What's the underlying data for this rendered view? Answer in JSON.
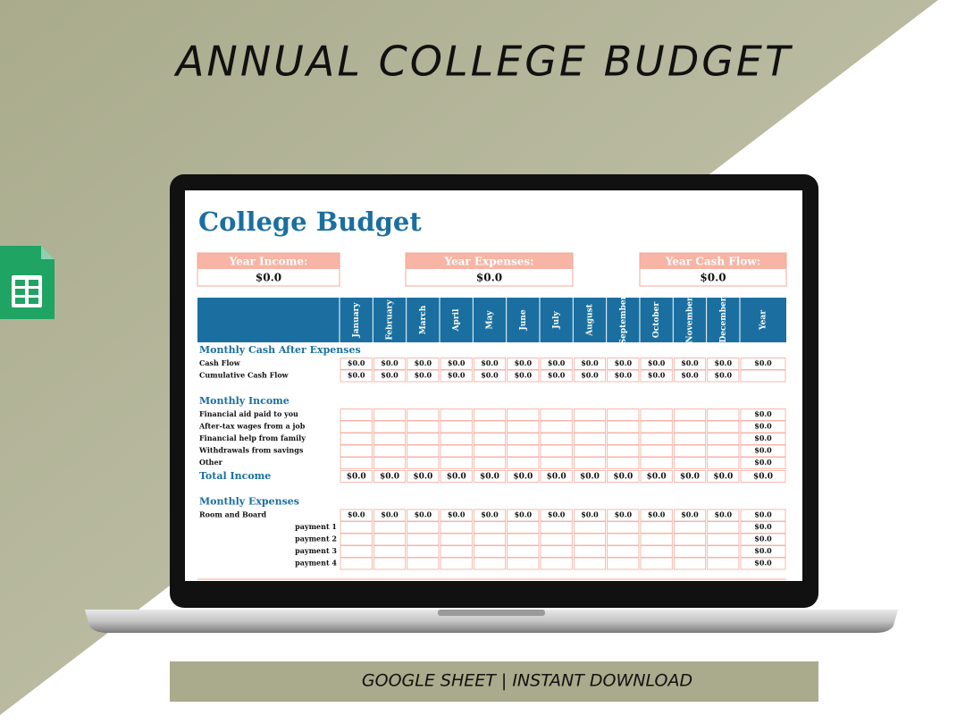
{
  "banner": {
    "title": "ANNUAL COLLEGE BUDGET",
    "footer": "GOOGLE SHEET | INSTANT DOWNLOAD"
  },
  "sheet": {
    "title": "College Budget",
    "summary": [
      {
        "label": "Year Income:",
        "value": "$0.0"
      },
      {
        "label": "Year Expenses:",
        "value": "$0.0"
      },
      {
        "label": "Year Cash Flow:",
        "value": "$0.0"
      }
    ],
    "columns": [
      "January",
      "February",
      "March",
      "April",
      "May",
      "June",
      "July",
      "August",
      "September",
      "October",
      "November",
      "December",
      "Year"
    ],
    "sections": [
      {
        "title": "Monthly Cash After Expenses",
        "rows": [
          {
            "label": "Cash Flow",
            "cells": [
              "$0.0",
              "$0.0",
              "$0.0",
              "$0.0",
              "$0.0",
              "$0.0",
              "$0.0",
              "$0.0",
              "$0.0",
              "$0.0",
              "$0.0",
              "$0.0",
              "$0.0"
            ]
          },
          {
            "label": "Cumulative Cash Flow",
            "cells": [
              "$0.0",
              "$0.0",
              "$0.0",
              "$0.0",
              "$0.0",
              "$0.0",
              "$0.0",
              "$0.0",
              "$0.0",
              "$0.0",
              "$0.0",
              "$0.0",
              null
            ]
          }
        ]
      },
      {
        "title": "Monthly Income",
        "rows": [
          {
            "label": "Financial aid paid to you",
            "cells": [
              null,
              null,
              null,
              null,
              null,
              null,
              null,
              null,
              null,
              null,
              null,
              null,
              "$0.0"
            ]
          },
          {
            "label": "After-tax wages from a job",
            "cells": [
              null,
              null,
              null,
              null,
              null,
              null,
              null,
              null,
              null,
              null,
              null,
              null,
              "$0.0"
            ]
          },
          {
            "label": "Financial help from family",
            "cells": [
              null,
              null,
              null,
              null,
              null,
              null,
              null,
              null,
              null,
              null,
              null,
              null,
              "$0.0"
            ]
          },
          {
            "label": "Withdrawals from savings",
            "cells": [
              null,
              null,
              null,
              null,
              null,
              null,
              null,
              null,
              null,
              null,
              null,
              null,
              "$0.0"
            ]
          },
          {
            "label": "Other",
            "cells": [
              null,
              null,
              null,
              null,
              null,
              null,
              null,
              null,
              null,
              null,
              null,
              null,
              "$0.0"
            ]
          }
        ],
        "total": {
          "label": "Total Income",
          "cells": [
            "$0.0",
            "$0.0",
            "$0.0",
            "$0.0",
            "$0.0",
            "$0.0",
            "$0.0",
            "$0.0",
            "$0.0",
            "$0.0",
            "$0.0",
            "$0.0",
            "$0.0"
          ]
        }
      },
      {
        "title": "Monthly Expenses",
        "rows": [
          {
            "label": "Room and Board",
            "cells": [
              "$0.0",
              "$0.0",
              "$0.0",
              "$0.0",
              "$0.0",
              "$0.0",
              "$0.0",
              "$0.0",
              "$0.0",
              "$0.0",
              "$0.0",
              "$0.0",
              "$0.0"
            ]
          },
          {
            "label": "payment 1",
            "indent": true,
            "cells": [
              null,
              null,
              null,
              null,
              null,
              null,
              null,
              null,
              null,
              null,
              null,
              null,
              "$0.0"
            ]
          },
          {
            "label": "payment 2",
            "indent": true,
            "cells": [
              null,
              null,
              null,
              null,
              null,
              null,
              null,
              null,
              null,
              null,
              null,
              null,
              "$0.0"
            ]
          },
          {
            "label": "payment 3",
            "indent": true,
            "cells": [
              null,
              null,
              null,
              null,
              null,
              null,
              null,
              null,
              null,
              null,
              null,
              null,
              "$0.0"
            ]
          },
          {
            "label": "payment 4",
            "indent": true,
            "cells": [
              null,
              null,
              null,
              null,
              null,
              null,
              null,
              null,
              null,
              null,
              null,
              null,
              "$0.0"
            ]
          }
        ]
      }
    ]
  }
}
